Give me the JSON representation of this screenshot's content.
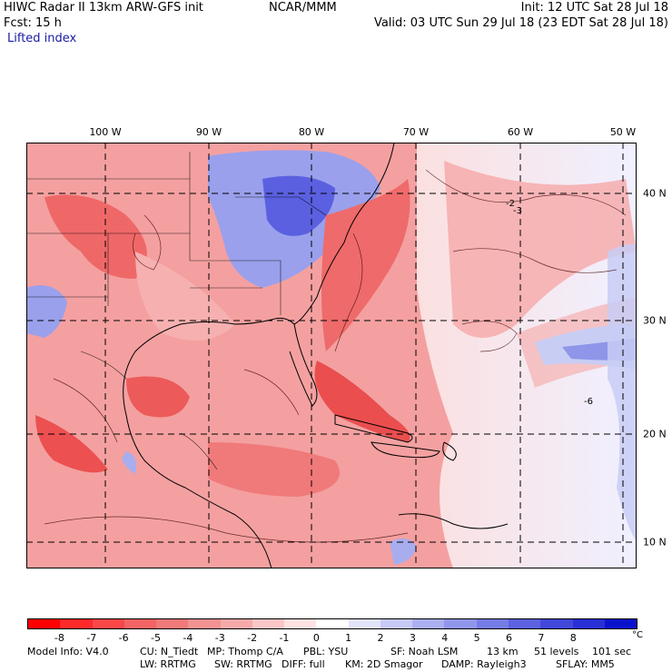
{
  "header": {
    "model_line": "HIWC Radar II 13km ARW-GFS init",
    "org": "NCAR/MMM",
    "init": "Init: 12 UTC Sat 28 Jul 18",
    "fcst": "Fcst:    15 h",
    "valid": "Valid: 03 UTC Sun 29 Jul 18 (23 EDT Sat 28 Jul 18)",
    "field": "Lifted index"
  },
  "map": {
    "lon_labels": [
      "100 W",
      "90 W",
      "80 W",
      "70 W",
      "60 W",
      "50 W"
    ],
    "lat_labels": [
      "40 N",
      "30 N",
      "20 N",
      "10 N"
    ],
    "contour_labels": [
      "-2",
      "-3",
      "-6"
    ],
    "colors": {
      "warm_strong": "#e81e1e",
      "warm": "#f07070",
      "warm_light": "#f8b8b8",
      "neutral": "#fbe8e8",
      "cool_light": "#c8cdf4",
      "cool": "#7f86e8",
      "cool_strong": "#4046d8"
    }
  },
  "colorbar": {
    "colors": [
      "#ff0000",
      "#ff2a2a",
      "#fa4848",
      "#f46464",
      "#f07a7a",
      "#f49292",
      "#f7aaaa",
      "#fac6c6",
      "#fde2e2",
      "#ffffff",
      "#e2e4fb",
      "#c6caf6",
      "#aab0f1",
      "#9096ec",
      "#767ce6",
      "#5c62e0",
      "#4148da",
      "#2830d6",
      "#0a12cc"
    ],
    "ticks": [
      "-8",
      "-7",
      "-6",
      "-5",
      "-4",
      "-3",
      "-2",
      "-1",
      "0",
      "1",
      "2",
      "3",
      "4",
      "5",
      "6",
      "7",
      "8"
    ],
    "unit": "°C"
  },
  "footer": {
    "line1": [
      "Model Info: V4.0",
      "CU: N_Tiedt",
      "MP: Thomp C/A",
      "PBL: YSU",
      "SF: Noah LSM",
      "13 km",
      "51 levels",
      "101 sec"
    ],
    "line2": [
      "LW: RRTMG",
      "SW: RRTMG",
      "DIFF: full",
      "KM: 2D Smagor",
      "DAMP: Rayleigh3",
      "SFLAY: MM5"
    ]
  }
}
